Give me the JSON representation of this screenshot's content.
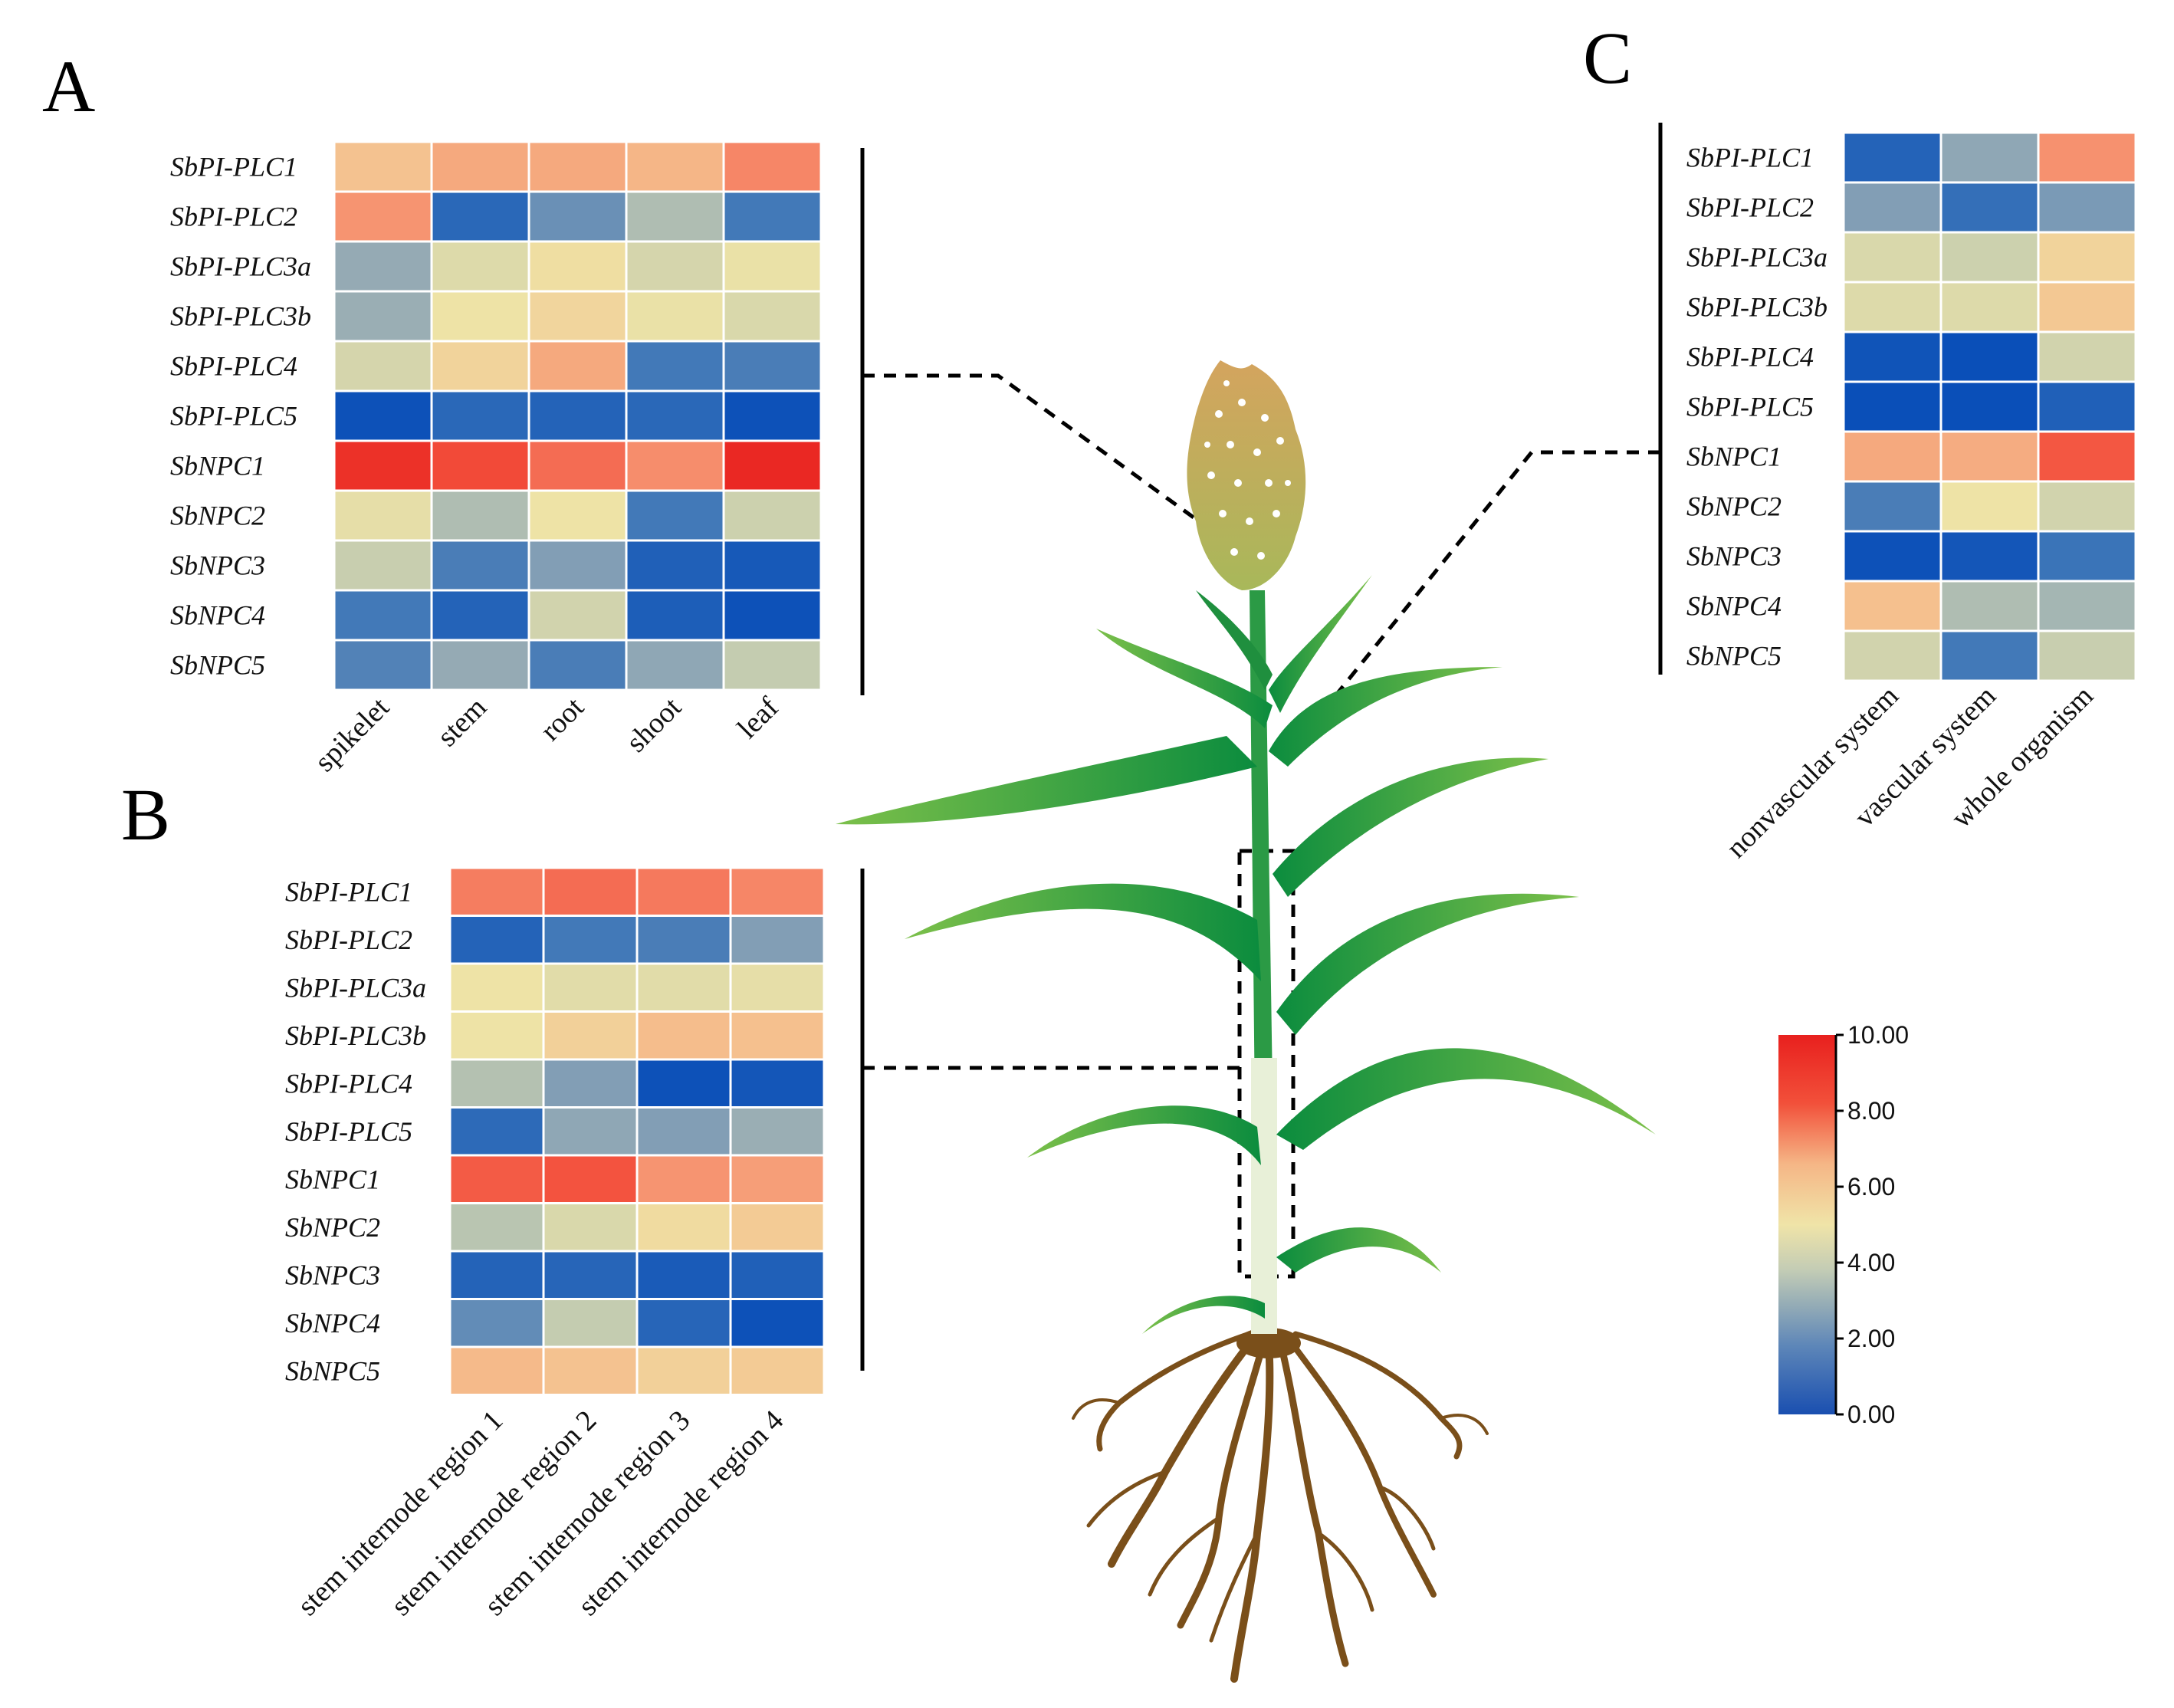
{
  "panels": {
    "A": {
      "letter": "A"
    },
    "B": {
      "letter": "B"
    },
    "C": {
      "letter": "C"
    }
  },
  "colorbar": {
    "ticks": [
      "10.00",
      "8.00",
      "6.00",
      "4.00",
      "2.00",
      "0.00"
    ],
    "stops": [
      "#1f5fb5",
      "#6f8fb3",
      "#c9cfb0",
      "#f0e4a8",
      "#f5b686",
      "#f2503a",
      "#e8201e"
    ]
  },
  "chart_data": [
    {
      "type": "heatmap",
      "panel": "A",
      "title": "",
      "value_range": [
        0,
        10
      ],
      "rows": [
        "SbPI-PLC1",
        "SbPI-PLC2",
        "SbPI-PLC3a",
        "SbPI-PLC3b",
        "SbPI-PLC4",
        "SbPI-PLC5",
        "SbNPC1",
        "SbNPC2",
        "SbNPC3",
        "SbNPC4",
        "SbNPC5"
      ],
      "columns": [
        "spikelet",
        "stem",
        "root",
        "shoot",
        "leaf"
      ],
      "values": [
        [
          5.8,
          6.6,
          6.6,
          6.2,
          7.6
        ],
        [
          7.2,
          1.0,
          2.1,
          3.2,
          1.6
        ],
        [
          2.7,
          4.2,
          4.8,
          4.0,
          4.5
        ],
        [
          2.8,
          4.6,
          5.1,
          4.5,
          4.1
        ],
        [
          4.0,
          5.2,
          6.6,
          1.6,
          1.7
        ],
        [
          0.1,
          1.0,
          0.8,
          1.0,
          0.1
        ],
        [
          9.6,
          9.0,
          8.2,
          7.4,
          9.8
        ],
        [
          4.4,
          3.2,
          4.6,
          1.6,
          3.8
        ],
        [
          3.7,
          1.7,
          2.4,
          0.7,
          0.4
        ],
        [
          1.6,
          0.8,
          3.9,
          0.6,
          0.1
        ],
        [
          1.8,
          2.7,
          1.7,
          2.6,
          3.6
        ]
      ]
    },
    {
      "type": "heatmap",
      "panel": "B",
      "title": "",
      "value_range": [
        0,
        10
      ],
      "rows": [
        "SbPI-PLC1",
        "SbPI-PLC2",
        "SbPI-PLC3a",
        "SbPI-PLC3b",
        "SbPI-PLC4",
        "SbPI-PLC5",
        "SbNPC1",
        "SbNPC2",
        "SbNPC3",
        "SbNPC4",
        "SbNPC5"
      ],
      "columns": [
        "stem internode region 1",
        "stem internode region 2",
        "stem internode region 3",
        "stem internode region 4"
      ],
      "values": [
        [
          7.8,
          8.2,
          7.9,
          7.6
        ],
        [
          0.8,
          1.6,
          1.7,
          2.4
        ],
        [
          4.6,
          4.3,
          4.3,
          4.4
        ],
        [
          4.6,
          5.3,
          6.0,
          5.9
        ],
        [
          3.3,
          2.4,
          0.1,
          0.3
        ],
        [
          1.1,
          2.6,
          2.4,
          2.8
        ],
        [
          8.6,
          8.8,
          7.2,
          6.9
        ],
        [
          3.4,
          4.1,
          4.9,
          5.5
        ],
        [
          0.8,
          0.9,
          0.5,
          0.7
        ],
        [
          2.0,
          3.6,
          0.9,
          0.1
        ],
        [
          6.1,
          5.8,
          5.3,
          5.5
        ]
      ]
    },
    {
      "type": "heatmap",
      "panel": "C",
      "title": "",
      "value_range": [
        0,
        10
      ],
      "rows": [
        "SbPI-PLC1",
        "SbPI-PLC2",
        "SbPI-PLC3a",
        "SbPI-PLC3b",
        "SbPI-PLC4",
        "SbPI-PLC5",
        "SbNPC1",
        "SbNPC2",
        "SbNPC3",
        "SbNPC4",
        "SbNPC5"
      ],
      "columns": [
        "nonvascular system",
        "vascular system",
        "whole organism"
      ],
      "values": [
        [
          0.8,
          2.6,
          7.3
        ],
        [
          2.4,
          1.3,
          2.3
        ],
        [
          4.1,
          3.8,
          5.2
        ],
        [
          4.2,
          4.2,
          5.6
        ],
        [
          0.2,
          0.0,
          3.9
        ],
        [
          0.0,
          0.0,
          0.7
        ],
        [
          6.6,
          6.5,
          8.7
        ],
        [
          1.7,
          4.6,
          3.9
        ],
        [
          0.1,
          0.3,
          1.5
        ],
        [
          5.9,
          3.2,
          3.0
        ],
        [
          3.9,
          1.6,
          3.7
        ]
      ]
    }
  ]
}
